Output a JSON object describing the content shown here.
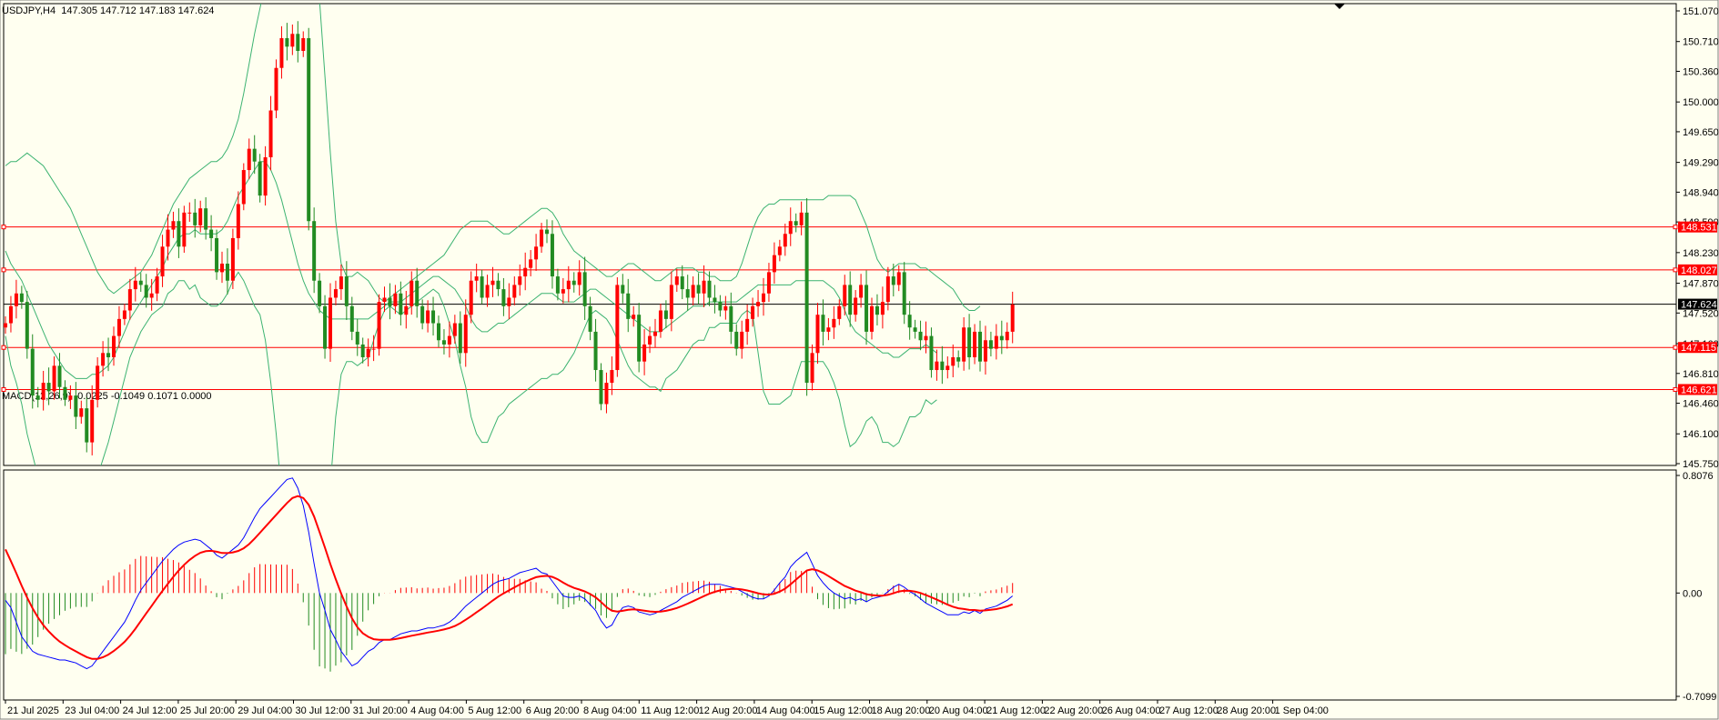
{
  "header": {
    "main": "USDJPY,H4  147.305 147.712 147.183 147.624",
    "macd": "MACD(12,26,9) -0.0225 -0.1049 0.1071 0.0000"
  },
  "colors": {
    "background": "#fffff0",
    "bull": "#ff0000",
    "bear": "#228b22",
    "bands": "#3cb371",
    "macd_line": "#0000ff",
    "signal_line": "#ff0000",
    "hist_pos": "#ff0000",
    "hist_neg": "#228b22",
    "hline": "#ff0000",
    "current_price_line": "#000000"
  },
  "chart_data": [
    {
      "type": "candlestick",
      "symbol": "USDJPY",
      "timeframe": "H4",
      "ohlc_header": {
        "open": 147.305,
        "high": 147.712,
        "low": 147.183,
        "close": 147.624
      },
      "ylim": [
        145.75,
        151.07
      ],
      "y_ticks": [
        151.07,
        150.71,
        150.36,
        150.0,
        149.65,
        149.29,
        148.94,
        148.59,
        148.23,
        147.87,
        147.52,
        147.16,
        146.81,
        146.46,
        146.1,
        145.75
      ],
      "y_tick_labels": [
        "151.070",
        "150.710",
        "150.360",
        "150.000",
        "149.650",
        "149.290",
        "148.940",
        "148.590",
        "148.230",
        "147.870",
        "147.520",
        "147.160",
        "146.810",
        "146.460",
        "146.100",
        "145.750"
      ],
      "x_labels": [
        "21 Jul 2025",
        "23 Jul 04:00",
        "24 Jul 12:00",
        "25 Jul 20:00",
        "29 Jul 04:00",
        "30 Jul 12:00",
        "31 Jul 20:00",
        "4 Aug 04:00",
        "5 Aug 12:00",
        "6 Aug 20:00",
        "8 Aug 04:00",
        "11 Aug 12:00",
        "12 Aug 20:00",
        "14 Aug 04:00",
        "15 Aug 12:00",
        "18 Aug 20:00",
        "20 Aug 04:00",
        "21 Aug 12:00",
        "22 Aug 20:00",
        "26 Aug 04:00",
        "27 Aug 12:00",
        "28 Aug 20:00",
        "1 Sep 04:00"
      ],
      "price_lines": [
        {
          "value": 148.531,
          "label": "148.531"
        },
        {
          "value": 148.027,
          "label": "148.027"
        },
        {
          "value": 147.115,
          "label": "147.115"
        },
        {
          "value": 146.621,
          "label": "146.621"
        }
      ],
      "current_price": {
        "value": 147.624,
        "label": "147.624"
      },
      "closes": [
        147.4,
        147.6,
        147.75,
        147.65,
        147.1,
        146.55,
        146.5,
        146.7,
        146.6,
        146.9,
        146.65,
        146.5,
        146.55,
        146.3,
        146.4,
        146.0,
        146.5,
        146.9,
        147.05,
        147.0,
        147.25,
        147.45,
        147.55,
        147.8,
        147.9,
        147.85,
        147.7,
        147.75,
        147.95,
        148.3,
        148.5,
        148.6,
        148.3,
        148.7,
        148.7,
        148.55,
        148.75,
        148.5,
        148.4,
        148.0,
        148.1,
        147.9,
        148.4,
        148.8,
        149.2,
        149.45,
        149.3,
        148.9,
        149.35,
        149.9,
        150.4,
        150.75,
        150.65,
        150.8,
        150.6,
        150.75,
        148.6,
        147.9,
        147.6,
        147.1,
        147.7,
        147.8,
        147.95,
        147.6,
        147.3,
        147.15,
        147.0,
        147.1,
        147.1,
        147.65,
        147.7,
        147.6,
        147.75,
        147.5,
        147.6,
        147.9,
        147.6,
        147.4,
        147.55,
        147.4,
        147.2,
        147.15,
        147.25,
        147.4,
        147.05,
        147.5,
        147.9,
        147.95,
        147.7,
        147.85,
        147.9,
        147.8,
        147.6,
        147.7,
        147.85,
        147.95,
        148.05,
        148.15,
        148.3,
        148.5,
        148.45,
        147.95,
        147.75,
        147.8,
        147.9,
        147.85,
        148.0,
        147.6,
        147.3,
        146.85,
        146.45,
        146.7,
        146.85,
        147.85,
        147.75,
        147.45,
        147.5,
        146.95,
        147.15,
        147.25,
        147.3,
        147.55,
        147.45,
        147.85,
        147.95,
        147.8,
        147.7,
        147.85,
        147.75,
        147.9,
        147.7,
        147.65,
        147.55,
        147.6,
        147.3,
        147.1,
        147.3,
        147.45,
        147.6,
        147.65,
        147.75,
        148.0,
        148.2,
        148.3,
        148.45,
        148.6,
        148.55,
        148.7,
        146.7,
        147.05,
        147.5,
        147.3,
        147.35,
        147.45,
        147.6,
        147.85,
        147.5,
        147.7,
        147.85,
        147.3,
        147.6,
        147.5,
        147.65,
        147.95,
        147.85,
        148.0,
        147.5,
        147.35,
        147.3,
        147.2,
        147.25,
        146.85,
        146.95,
        146.85,
        146.9,
        147.0,
        146.95,
        147.35,
        147.0,
        147.3,
        146.95,
        147.2,
        147.1,
        147.25,
        147.2,
        147.3,
        147.62
      ],
      "upper_band": [
        149.25,
        149.3,
        149.3,
        149.35,
        149.4,
        149.35,
        149.3,
        149.25,
        149.15,
        149.05,
        148.95,
        148.85,
        148.75,
        148.6,
        148.45,
        148.3,
        148.15,
        148.0,
        147.9,
        147.8,
        147.75,
        147.8,
        147.85,
        147.9,
        147.95,
        148.0,
        148.1,
        148.2,
        148.35,
        148.5,
        148.65,
        148.8,
        148.9,
        149.0,
        149.1,
        149.15,
        149.2,
        149.25,
        149.3,
        149.3,
        149.35,
        149.45,
        149.6,
        149.8,
        150.1,
        150.45,
        150.8,
        151.1,
        151.4,
        151.7,
        152.0,
        152.3,
        152.55,
        152.8,
        152.9,
        152.85,
        152.6,
        152.0,
        151.2,
        150.3,
        149.4,
        148.6,
        148.1,
        147.95,
        147.95,
        148.0,
        147.95,
        147.9,
        147.8,
        147.7,
        147.65,
        147.7,
        147.75,
        147.8,
        147.85,
        147.9,
        147.95,
        148.0,
        148.05,
        148.1,
        148.15,
        148.2,
        148.3,
        148.4,
        148.5,
        148.55,
        148.6,
        148.6,
        148.6,
        148.6,
        148.55,
        148.5,
        148.45,
        148.45,
        148.5,
        148.55,
        148.6,
        148.65,
        148.7,
        148.75,
        148.75,
        148.7,
        148.6,
        148.45,
        148.35,
        148.25,
        148.2,
        148.15,
        148.1,
        148.05,
        148.0,
        147.95,
        147.95,
        148.0,
        148.05,
        148.1,
        148.1,
        148.05,
        148.0,
        147.95,
        147.9,
        147.9,
        147.95,
        148.0,
        148.05,
        148.05,
        148.05,
        148.05,
        148.0,
        148.0,
        147.95,
        147.95,
        147.9,
        147.9,
        147.9,
        147.95,
        148.1,
        148.3,
        148.5,
        148.65,
        148.75,
        148.8,
        148.8,
        148.85,
        148.85,
        148.85,
        148.85,
        148.85,
        148.85,
        148.85,
        148.85,
        148.85,
        148.9,
        148.9,
        148.9,
        148.9,
        148.9,
        148.85,
        148.7,
        148.55,
        148.35,
        148.15,
        148.05,
        148.0,
        148.05,
        148.1,
        148.1,
        148.1,
        148.1,
        148.05,
        148.05,
        148.0,
        147.95,
        147.9,
        147.85,
        147.8,
        147.7,
        147.6,
        147.55,
        147.55,
        147.6
      ],
      "middle_band": [
        148.25,
        148.1,
        148.0,
        147.9,
        147.75,
        147.6,
        147.45,
        147.3,
        147.15,
        147.05,
        146.95,
        146.85,
        146.8,
        146.75,
        146.75,
        146.75,
        146.8,
        146.8,
        146.85,
        146.9,
        147.0,
        147.15,
        147.3,
        147.45,
        147.55,
        147.65,
        147.75,
        147.85,
        147.95,
        148.05,
        148.2,
        148.3,
        148.4,
        148.45,
        148.45,
        148.5,
        148.45,
        148.45,
        148.45,
        148.45,
        148.5,
        148.6,
        148.75,
        148.9,
        149.0,
        149.1,
        149.2,
        149.3,
        149.3,
        149.2,
        149.05,
        148.85,
        148.6,
        148.35,
        148.1,
        147.9,
        147.75,
        147.65,
        147.55,
        147.5,
        147.45,
        147.45,
        147.45,
        147.45,
        147.45,
        147.45,
        147.45,
        147.45,
        147.5,
        147.55,
        147.6,
        147.65,
        147.65,
        147.65,
        147.7,
        147.75,
        147.8,
        147.85,
        147.9,
        147.95,
        147.95,
        147.9,
        147.85,
        147.8,
        147.7,
        147.6,
        147.45,
        147.35,
        147.3,
        147.3,
        147.35,
        147.4,
        147.4,
        147.45,
        147.5,
        147.55,
        147.6,
        147.65,
        147.7,
        147.75,
        147.75,
        147.75,
        147.7,
        147.65,
        147.65,
        147.65,
        147.7,
        147.75,
        147.8,
        147.8,
        147.75,
        147.7,
        147.65,
        147.6,
        147.55,
        147.5,
        147.45,
        147.4,
        147.35,
        147.3,
        147.3,
        147.3,
        147.35,
        147.4,
        147.45,
        147.5,
        147.55,
        147.6,
        147.6,
        147.6,
        147.65,
        147.65,
        147.65,
        147.65,
        147.65,
        147.65,
        147.7,
        147.75,
        147.8,
        147.85,
        147.85,
        147.85,
        147.85,
        147.85,
        147.85,
        147.85,
        147.9,
        147.9,
        147.9,
        147.9,
        147.9,
        147.9,
        147.85,
        147.8,
        147.7,
        147.55,
        147.4,
        147.3,
        147.25,
        147.2,
        147.15,
        147.1,
        147.05,
        147.05,
        147.0,
        147.0,
        147.05,
        147.1,
        147.1,
        147.1,
        147.15,
        147.1,
        147.05
      ],
      "lower_band": [
        147.25,
        146.9,
        146.7,
        146.45,
        146.1,
        145.85,
        145.6,
        145.35,
        145.15,
        145.05,
        144.95,
        144.85,
        144.85,
        144.9,
        145.05,
        145.2,
        145.45,
        145.6,
        145.8,
        146.0,
        146.25,
        146.5,
        146.75,
        147.0,
        147.15,
        147.3,
        147.4,
        147.5,
        147.55,
        147.6,
        147.75,
        147.8,
        147.9,
        147.9,
        147.8,
        147.85,
        147.7,
        147.65,
        147.6,
        147.6,
        147.65,
        147.75,
        147.9,
        148.0,
        147.9,
        147.75,
        147.6,
        147.5,
        147.2,
        146.7,
        146.1,
        145.4,
        144.65,
        143.9,
        143.3,
        142.95,
        142.9,
        143.3,
        143.9,
        144.7,
        145.5,
        146.3,
        146.8,
        146.95,
        146.95,
        146.9,
        146.95,
        147.0,
        147.2,
        147.4,
        147.55,
        147.6,
        147.55,
        147.5,
        147.55,
        147.6,
        147.65,
        147.7,
        147.75,
        147.8,
        147.75,
        147.6,
        147.4,
        147.2,
        146.9,
        146.65,
        146.3,
        146.1,
        146.0,
        146.0,
        146.15,
        146.3,
        146.35,
        146.45,
        146.5,
        146.55,
        146.6,
        146.65,
        146.7,
        146.75,
        146.75,
        146.8,
        146.8,
        146.85,
        146.95,
        147.05,
        147.2,
        147.35,
        147.5,
        147.55,
        147.5,
        147.45,
        147.35,
        147.2,
        147.05,
        146.9,
        146.8,
        146.75,
        146.7,
        146.65,
        146.65,
        146.6,
        146.75,
        146.8,
        146.85,
        146.95,
        147.05,
        147.15,
        147.2,
        147.2,
        147.35,
        147.35,
        147.4,
        147.4,
        147.4,
        147.4,
        147.5,
        147.55,
        147.5,
        147.05,
        146.6,
        146.45,
        146.45,
        146.45,
        146.5,
        146.55,
        146.75,
        146.95,
        146.95,
        146.95,
        146.95,
        146.95,
        146.85,
        146.7,
        146.5,
        146.2,
        145.95,
        146.0,
        146.1,
        146.25,
        146.3,
        146.2,
        146.0,
        146.0,
        145.95,
        146.0,
        146.15,
        146.3,
        146.3,
        146.35,
        146.5,
        146.45,
        146.5
      ]
    },
    {
      "type": "macd",
      "title": "MACD(12,26,9)",
      "values": {
        "main": -0.0225,
        "signal": -0.1049,
        "histogram": 0.1071,
        "extra": 0.0
      },
      "ylim": [
        -0.7099,
        0.8076
      ],
      "y_ticks": [
        0.8076,
        0.0,
        -0.7099
      ],
      "y_tick_labels": [
        "0.8076",
        "0.00",
        "-0.7099"
      ],
      "macd_line": [
        -0.05,
        -0.1,
        -0.2,
        -0.3,
        -0.35,
        -0.4,
        -0.42,
        -0.43,
        -0.44,
        -0.45,
        -0.46,
        -0.46,
        -0.47,
        -0.48,
        -0.5,
        -0.52,
        -0.5,
        -0.45,
        -0.4,
        -0.35,
        -0.3,
        -0.25,
        -0.2,
        -0.13,
        -0.05,
        0.02,
        0.07,
        0.12,
        0.17,
        0.22,
        0.26,
        0.3,
        0.33,
        0.35,
        0.36,
        0.37,
        0.36,
        0.33,
        0.3,
        0.26,
        0.24,
        0.27,
        0.3,
        0.33,
        0.38,
        0.45,
        0.52,
        0.58,
        0.62,
        0.66,
        0.7,
        0.74,
        0.78,
        0.79,
        0.72,
        0.6,
        0.42,
        0.2,
        0.0,
        -0.12,
        -0.25,
        -0.32,
        -0.4,
        -0.45,
        -0.5,
        -0.48,
        -0.44,
        -0.4,
        -0.38,
        -0.34,
        -0.32,
        -0.32,
        -0.3,
        -0.28,
        -0.27,
        -0.26,
        -0.26,
        -0.25,
        -0.24,
        -0.24,
        -0.23,
        -0.22,
        -0.2,
        -0.17,
        -0.13,
        -0.09,
        -0.06,
        -0.03,
        0.0,
        0.03,
        0.06,
        0.08,
        0.09,
        0.1,
        0.12,
        0.14,
        0.15,
        0.16,
        0.17,
        0.14,
        0.13,
        0.08,
        0.03,
        -0.02,
        -0.03,
        -0.03,
        -0.02,
        -0.04,
        -0.08,
        -0.12,
        -0.19,
        -0.24,
        -0.22,
        -0.15,
        -0.1,
        -0.09,
        -0.1,
        -0.13,
        -0.14,
        -0.15,
        -0.14,
        -0.12,
        -0.1,
        -0.08,
        -0.06,
        -0.03,
        -0.01,
        0.01,
        0.03,
        0.05,
        0.06,
        0.06,
        0.06,
        0.05,
        0.04,
        0.03,
        0.01,
        -0.01,
        -0.03,
        -0.04,
        -0.04,
        -0.02,
        0.02,
        0.07,
        0.11,
        0.18,
        0.22,
        0.25,
        0.28,
        0.2,
        0.12,
        0.07,
        0.03,
        0.0,
        -0.02,
        -0.04,
        -0.03,
        -0.05,
        -0.04,
        -0.06,
        -0.04,
        -0.03,
        -0.02,
        0.01,
        0.04,
        0.06,
        0.04,
        0.01,
        -0.01,
        -0.04,
        -0.07,
        -0.09,
        -0.11,
        -0.13,
        -0.15,
        -0.15,
        -0.15,
        -0.13,
        -0.14,
        -0.12,
        -0.14,
        -0.11,
        -0.1,
        -0.09,
        -0.07,
        -0.05,
        -0.02
      ]
    }
  ]
}
